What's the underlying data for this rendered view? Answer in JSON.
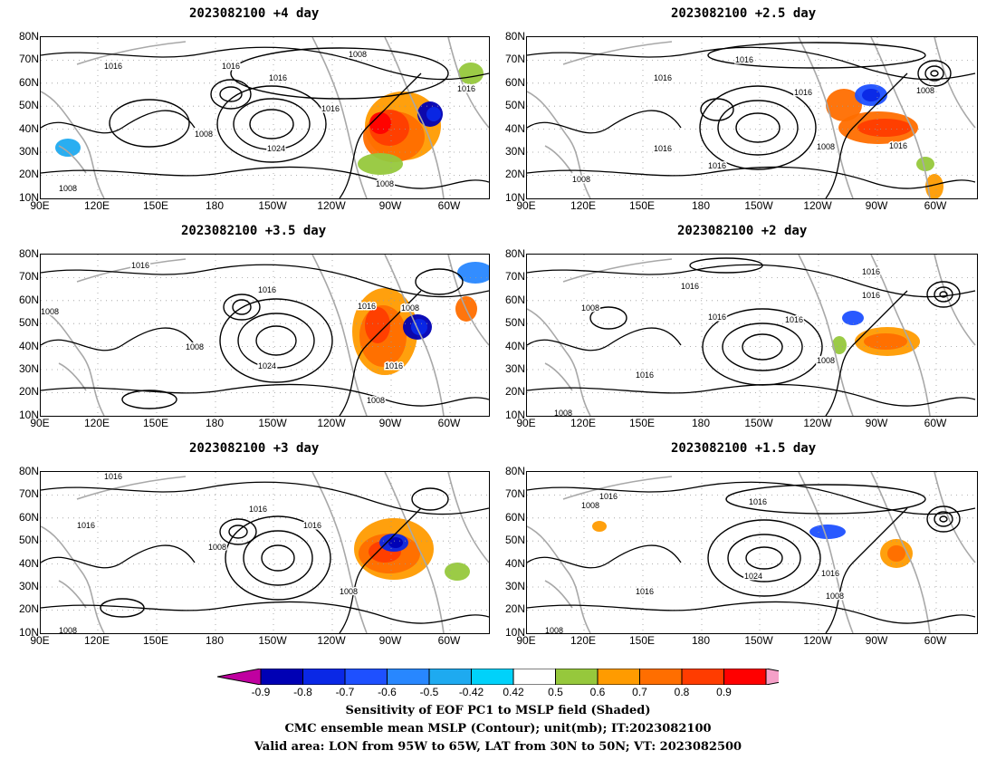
{
  "panels": [
    {
      "title": "2023082100  +4 day"
    },
    {
      "title": "2023082100  +2.5 day"
    },
    {
      "title": "2023082100  +3.5 day"
    },
    {
      "title": "2023082100  +2 day"
    },
    {
      "title": "2023082100  +3 day"
    },
    {
      "title": "2023082100  +1.5 day"
    }
  ],
  "lat_labels": [
    "80N",
    "70N",
    "60N",
    "50N",
    "40N",
    "30N",
    "20N",
    "10N"
  ],
  "lon_labels": [
    "90E",
    "120E",
    "150E",
    "180",
    "150W",
    "120W",
    "90W",
    "60W"
  ],
  "contour_labels": [
    "1016",
    "1008",
    "1024"
  ],
  "colorbar": {
    "labels": [
      "-0.9",
      "-0.8",
      "-0.7",
      "-0.6",
      "-0.5",
      "-0.42",
      "0.42",
      "0.5",
      "0.6",
      "0.7",
      "0.8",
      "0.9"
    ],
    "colors": [
      "#c000a0",
      "#0000b4",
      "#0a28e6",
      "#1e50ff",
      "#2887ff",
      "#1eaaf0",
      "#00d2fa",
      "#ffffff",
      "#96c83c",
      "#ff9b00",
      "#ff6e00",
      "#ff3c00",
      "#ff0000",
      "#f5a0c8"
    ]
  },
  "caption": {
    "line1": "Sensitivity of EOF PC1 to MSLP field (Shaded)",
    "line2": "CMC ensemble mean MSLP (Contour); unit(mb); IT:2023082100",
    "line3": "Valid area: LON from 95W to 65W, LAT from 30N to 50N; VT: 2023082500"
  }
}
